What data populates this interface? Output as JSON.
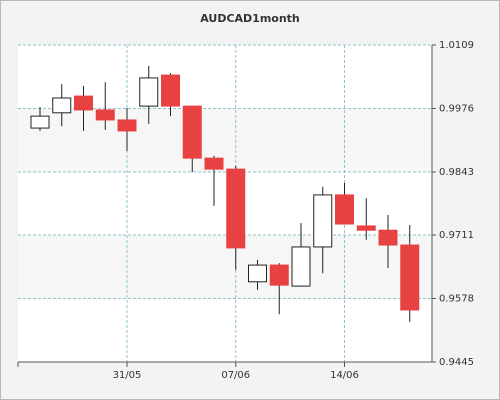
{
  "chart_data": {
    "type": "candlestick",
    "title": "AUDCAD1month",
    "categories": [
      null,
      null,
      null,
      null,
      "31/05",
      null,
      null,
      null,
      null,
      "07/06",
      null,
      null,
      null,
      null,
      "14/06",
      null,
      null,
      null
    ],
    "open": [
      0.9935,
      0.9967,
      1.0002,
      0.9973,
      0.9952,
      0.9981,
      1.0046,
      0.9981,
      0.9872,
      0.9849,
      0.9613,
      0.9648,
      0.9604,
      0.9686,
      0.9795,
      0.973,
      0.9721,
      0.969
    ],
    "high": [
      0.9979,
      1.0027,
      1.0023,
      1.0031,
      0.9977,
      1.0065,
      1.005,
      0.9981,
      0.9877,
      0.9856,
      0.9659,
      0.9652,
      0.9736,
      0.9812,
      0.982,
      0.9788,
      0.9753,
      0.9732
    ],
    "low": [
      0.9929,
      0.9939,
      0.9929,
      0.9931,
      0.9887,
      0.9944,
      0.996,
      0.9843,
      0.9772,
      0.9638,
      0.9596,
      0.9545,
      0.9604,
      0.9631,
      0.9734,
      0.9701,
      0.9642,
      0.9529
    ],
    "close": [
      0.996,
      0.9998,
      0.9973,
      0.9952,
      0.9929,
      1.004,
      0.9981,
      0.9872,
      0.9849,
      0.9684,
      0.9648,
      0.9606,
      0.9686,
      0.9795,
      0.9734,
      0.9721,
      0.969,
      0.9554
    ],
    "up_color": "#ffffff",
    "down_color": "#e84142",
    "ylim": [
      0.9445,
      1.0109
    ],
    "yticks": [
      0.9445,
      0.9578,
      0.9711,
      0.9843,
      0.9976,
      1.0109
    ],
    "grid": true
  }
}
